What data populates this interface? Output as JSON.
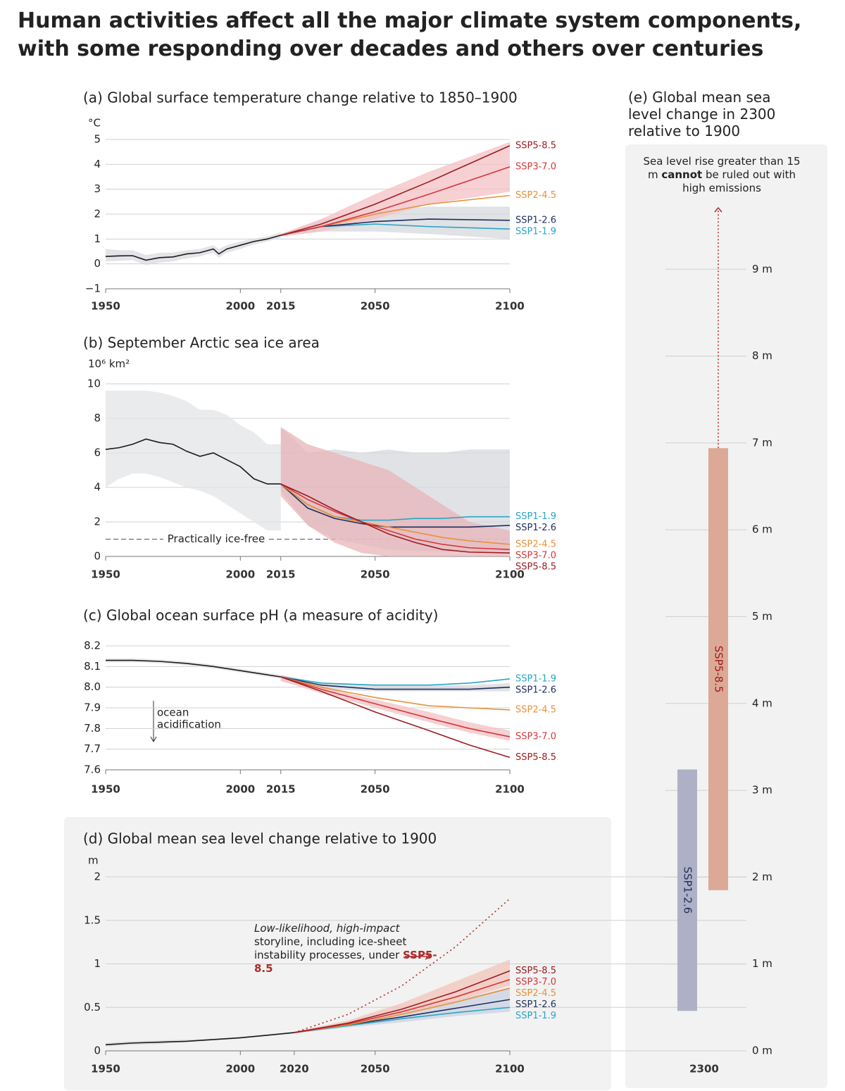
{
  "title": "Human activities affect all the major climate system components, with some responding over decades and others over centuries",
  "chart_data": [
    {
      "type": "line",
      "title": "(a) Global surface temperature change relative to 1850–1900",
      "y_unit": "°C",
      "xlim": [
        1950,
        2100
      ],
      "xticks": [
        1950,
        2000,
        2015,
        2050,
        2100
      ],
      "ylim": [
        -1,
        5
      ],
      "yticks": [
        {
          "value": -1,
          "label": "−1"
        },
        0,
        1,
        2,
        3,
        4,
        5
      ],
      "grid": true,
      "series": [
        {
          "color": "#1a1a1a",
          "band_color": "#d9dbdf",
          "x": [
            1950,
            1955,
            1960,
            1965,
            1970,
            1975,
            1980,
            1985,
            1990,
            1992,
            1995,
            2000,
            2005,
            2010,
            2015
          ],
          "values": [
            0.3,
            0.32,
            0.33,
            0.15,
            0.25,
            0.28,
            0.4,
            0.45,
            0.6,
            0.4,
            0.6,
            0.75,
            0.9,
            1.0,
            1.15
          ],
          "low": [
            0.1,
            0.12,
            0.15,
            -0.05,
            0.05,
            0.1,
            0.22,
            0.3,
            0.45,
            0.25,
            0.45,
            0.6,
            0.78,
            0.9,
            1.05
          ],
          "high": [
            0.6,
            0.55,
            0.55,
            0.35,
            0.45,
            0.45,
            0.55,
            0.6,
            0.75,
            0.6,
            0.75,
            0.9,
            1.02,
            1.1,
            1.28
          ]
        },
        {
          "name": "SSP1-1.9",
          "color": "#2aa5c6",
          "x": [
            2015,
            2030,
            2050,
            2070,
            2100
          ],
          "values": [
            1.15,
            1.5,
            1.6,
            1.5,
            1.4
          ]
        },
        {
          "name": "SSP1-2.6",
          "color": "#1f2e5e",
          "band_color": "#d5d8de",
          "x": [
            2015,
            2030,
            2050,
            2070,
            2100
          ],
          "values": [
            1.15,
            1.5,
            1.7,
            1.8,
            1.75
          ],
          "low": [
            1.1,
            1.3,
            1.3,
            1.2,
            1.0
          ],
          "high": [
            1.2,
            1.8,
            2.1,
            2.3,
            2.3
          ]
        },
        {
          "name": "SSP2-4.5",
          "color": "#e8913a",
          "x": [
            2015,
            2030,
            2050,
            2070,
            2100
          ],
          "values": [
            1.15,
            1.5,
            2.0,
            2.4,
            2.75
          ]
        },
        {
          "name": "SSP3-7.0",
          "color": "#d6363b",
          "band_color": "#f3c0c3",
          "x": [
            2015,
            2030,
            2050,
            2070,
            2100
          ],
          "values": [
            1.15,
            1.5,
            2.1,
            2.8,
            3.9
          ],
          "low": [
            1.1,
            1.3,
            1.8,
            2.4,
            2.9
          ],
          "high": [
            1.2,
            1.8,
            2.8,
            3.7,
            4.9
          ]
        },
        {
          "name": "SSP5-8.5",
          "color": "#9c1c22",
          "x": [
            2015,
            2030,
            2050,
            2070,
            2100
          ],
          "values": [
            1.15,
            1.6,
            2.4,
            3.3,
            4.75
          ]
        }
      ]
    },
    {
      "type": "line",
      "title": "(b) September Arctic sea ice area",
      "y_unit": "10⁶ km²",
      "xlim": [
        1950,
        2100
      ],
      "xticks": [
        1950,
        2000,
        2015,
        2050,
        2100
      ],
      "ylim": [
        0,
        10
      ],
      "yticks": [
        0,
        2,
        4,
        6,
        8,
        10
      ],
      "grid": true,
      "threshold": {
        "value": 1,
        "label": "Practically ice-free"
      },
      "series": [
        {
          "color": "#1a1a1a",
          "band_color": "#e3e4e6",
          "x": [
            1950,
            1955,
            1960,
            1965,
            1970,
            1975,
            1980,
            1985,
            1990,
            1995,
            2000,
            2005,
            2010,
            2015
          ],
          "values": [
            6.2,
            6.3,
            6.5,
            6.8,
            6.6,
            6.5,
            6.1,
            5.8,
            6.0,
            5.6,
            5.2,
            4.5,
            4.2,
            4.2
          ],
          "low": [
            4.0,
            4.5,
            4.8,
            4.8,
            4.6,
            4.3,
            4.0,
            3.8,
            3.5,
            3.0,
            2.5,
            2.0,
            1.5,
            1.5
          ],
          "high": [
            9.6,
            9.6,
            9.6,
            9.6,
            9.5,
            9.3,
            9.0,
            8.5,
            8.5,
            8.2,
            7.6,
            7.2,
            6.5,
            6.5
          ]
        },
        {
          "name": "SSP1-1.9",
          "color": "#2aa5c6",
          "x": [
            2015,
            2025,
            2035,
            2045,
            2055,
            2065,
            2075,
            2085,
            2100
          ],
          "values": [
            4.2,
            3.0,
            2.3,
            2.1,
            2.1,
            2.2,
            2.2,
            2.3,
            2.3
          ]
        },
        {
          "name": "SSP1-2.6",
          "color": "#1f2e5e",
          "band_color": "#d5d8de",
          "x": [
            2015,
            2025,
            2035,
            2045,
            2055,
            2065,
            2075,
            2085,
            2100
          ],
          "values": [
            4.2,
            2.8,
            2.2,
            1.9,
            1.7,
            1.7,
            1.7,
            1.7,
            1.8
          ],
          "low": [
            3.8,
            1.8,
            1.0,
            0.7,
            0.4,
            0.3,
            0.3,
            0.3,
            0.3
          ],
          "high": [
            7.5,
            6.0,
            6.2,
            6.0,
            6.2,
            6.0,
            6.0,
            6.2,
            6.2
          ]
        },
        {
          "name": "SSP2-4.5",
          "color": "#e8913a",
          "x": [
            2015,
            2025,
            2035,
            2045,
            2055,
            2065,
            2075,
            2085,
            2100
          ],
          "values": [
            4.2,
            3.0,
            2.3,
            2.0,
            1.7,
            1.4,
            1.1,
            0.9,
            0.7
          ]
        },
        {
          "name": "SSP3-7.0",
          "color": "#d6363b",
          "x": [
            2015,
            2025,
            2035,
            2045,
            2055,
            2065,
            2075,
            2085,
            2100
          ],
          "values": [
            4.2,
            3.3,
            2.6,
            2.0,
            1.5,
            1.0,
            0.7,
            0.5,
            0.4
          ]
        },
        {
          "name": "SSP5-8.5",
          "color": "#9c1c22",
          "band_color": "#e8b4b8",
          "x": [
            2015,
            2025,
            2035,
            2045,
            2055,
            2065,
            2075,
            2085,
            2100
          ],
          "values": [
            4.2,
            3.5,
            2.7,
            2.0,
            1.3,
            0.8,
            0.4,
            0.25,
            0.2
          ],
          "low": [
            3.5,
            1.8,
            0.8,
            0.2,
            0,
            0,
            0,
            0,
            0
          ],
          "high": [
            7.5,
            6.5,
            6.0,
            5.5,
            5.0,
            4.0,
            3.0,
            2.0,
            1.5
          ]
        }
      ]
    },
    {
      "type": "line",
      "title": "(c) Global ocean surface pH (a measure of acidity)",
      "xlim": [
        1950,
        2100
      ],
      "xticks": [
        1950,
        2000,
        2015,
        2050,
        2100
      ],
      "ylim": [
        7.6,
        8.2
      ],
      "yticks": [
        7.6,
        7.7,
        7.8,
        7.9,
        {
          "value": 8,
          "label": "8.0"
        },
        8.1,
        8.2
      ],
      "grid": true,
      "annotation": [
        "ocean",
        "acidification"
      ],
      "series": [
        {
          "color": "#1a1a1a",
          "band_color": "#e3e4e6",
          "x": [
            1950,
            1960,
            1970,
            1980,
            1990,
            2000,
            2010,
            2015
          ],
          "values": [
            8.13,
            8.13,
            8.125,
            8.115,
            8.1,
            8.08,
            8.06,
            8.05
          ],
          "low": [
            8.12,
            8.12,
            8.115,
            8.105,
            8.09,
            8.07,
            8.05,
            8.04
          ],
          "high": [
            8.14,
            8.14,
            8.135,
            8.125,
            8.11,
            8.09,
            8.07,
            8.06
          ]
        },
        {
          "name": "SSP1-1.9",
          "color": "#2aa5c6",
          "x": [
            2015,
            2030,
            2050,
            2070,
            2085,
            2100
          ],
          "values": [
            8.05,
            8.02,
            8.01,
            8.01,
            8.02,
            8.04
          ]
        },
        {
          "name": "SSP1-2.6",
          "color": "#1f2e5e",
          "band_color": "#d5d8de",
          "x": [
            2015,
            2030,
            2050,
            2070,
            2085,
            2100
          ],
          "values": [
            8.05,
            8.01,
            7.99,
            7.99,
            7.99,
            8.0
          ],
          "low": [
            8.03,
            7.99,
            7.98,
            7.98,
            7.98,
            7.98
          ],
          "high": [
            8.06,
            8.02,
            8.01,
            8.01,
            8.01,
            8.02
          ]
        },
        {
          "name": "SSP2-4.5",
          "color": "#e8913a",
          "x": [
            2015,
            2030,
            2050,
            2070,
            2085,
            2100
          ],
          "values": [
            8.05,
            8.0,
            7.95,
            7.91,
            7.9,
            7.89
          ]
        },
        {
          "name": "SSP3-7.0",
          "color": "#d6363b",
          "band_color": "#f3c0c3",
          "x": [
            2015,
            2030,
            2050,
            2070,
            2085,
            2100
          ],
          "values": [
            8.05,
            7.99,
            7.92,
            7.85,
            7.8,
            7.76
          ],
          "low": [
            8.03,
            7.97,
            7.9,
            7.83,
            7.78,
            7.74
          ],
          "high": [
            8.06,
            8.0,
            7.94,
            7.88,
            7.83,
            7.79
          ]
        },
        {
          "name": "SSP5-8.5",
          "color": "#9c1c22",
          "x": [
            2015,
            2030,
            2050,
            2070,
            2085,
            2100
          ],
          "values": [
            8.05,
            7.98,
            7.88,
            7.79,
            7.72,
            7.66
          ]
        }
      ]
    },
    {
      "type": "line",
      "title": "(d) Global mean sea level change relative to 1900",
      "y_unit": "m",
      "xlim": [
        1950,
        2100
      ],
      "xticks": [
        1950,
        2000,
        2020,
        2050,
        2100
      ],
      "ylim": [
        0,
        2
      ],
      "yticks": [
        0,
        0.5,
        1,
        1.5,
        2
      ],
      "grid": true,
      "annotation": [
        "Low-likelihood, high-impact",
        "storyline, including ice-sheet instability processes, under",
        "SSP5-8.5"
      ],
      "series": [
        {
          "color": "#1a1a1a",
          "band_color": "#d5d8de",
          "x": [
            1950,
            1960,
            1970,
            1980,
            1990,
            2000,
            2010,
            2020
          ],
          "values": [
            0.07,
            0.09,
            0.1,
            0.11,
            0.13,
            0.15,
            0.18,
            0.21
          ],
          "low": [
            0.05,
            0.07,
            0.08,
            0.1,
            0.12,
            0.14,
            0.17,
            0.2
          ],
          "high": [
            0.09,
            0.11,
            0.12,
            0.13,
            0.14,
            0.16,
            0.19,
            0.22
          ]
        },
        {
          "name": "SSP1-1.9",
          "color": "#2aa5c6",
          "x": [
            2020,
            2040,
            2060,
            2080,
            2100
          ],
          "values": [
            0.21,
            0.29,
            0.37,
            0.44,
            0.5
          ]
        },
        {
          "name": "SSP1-2.6",
          "color": "#1f2e5e",
          "band_color": "#c9d2e0",
          "x": [
            2020,
            2040,
            2060,
            2080,
            2100
          ],
          "values": [
            0.21,
            0.3,
            0.39,
            0.49,
            0.59
          ],
          "low": [
            0.2,
            0.27,
            0.33,
            0.4,
            0.45
          ],
          "high": [
            0.22,
            0.33,
            0.45,
            0.58,
            0.73
          ]
        },
        {
          "name": "SSP2-4.5",
          "color": "#e8913a",
          "x": [
            2020,
            2040,
            2060,
            2080,
            2100
          ],
          "values": [
            0.21,
            0.3,
            0.42,
            0.56,
            0.72
          ]
        },
        {
          "name": "SSP3-7.0",
          "color": "#d6363b",
          "x": [
            2020,
            2040,
            2060,
            2080,
            2100
          ],
          "values": [
            0.21,
            0.31,
            0.45,
            0.62,
            0.82
          ]
        },
        {
          "name": "SSP5-8.5",
          "color": "#9c1c22",
          "band_color": "#f1c3b8",
          "x": [
            2020,
            2040,
            2060,
            2080,
            2100
          ],
          "values": [
            0.21,
            0.32,
            0.48,
            0.68,
            0.92
          ],
          "low": [
            0.2,
            0.29,
            0.41,
            0.57,
            0.75
          ],
          "high": [
            0.22,
            0.35,
            0.55,
            0.8,
            1.05
          ]
        },
        {
          "color": "#b02a2a",
          "dashed": true,
          "x": [
            2020,
            2040,
            2060,
            2080,
            2100
          ],
          "values": [
            0.21,
            0.42,
            0.75,
            1.2,
            1.75
          ]
        }
      ]
    },
    {
      "type": "range_bar",
      "title": "(e) Global mean sea level change in 2300 relative to 1900",
      "note": [
        "Sea level rise greater than 15 m",
        "cannot",
        "be ruled out with high emissions"
      ],
      "categories": [
        "2300"
      ],
      "ylim": [
        0,
        10
      ],
      "yticks": [
        {
          "value": 0,
          "label": "0 m"
        },
        {
          "value": 1,
          "label": "1 m"
        },
        {
          "value": 2,
          "label": "2 m"
        },
        {
          "value": 3,
          "label": "3 m"
        },
        {
          "value": 4,
          "label": "4 m"
        },
        {
          "value": 5,
          "label": "5 m"
        },
        {
          "value": 6,
          "label": "6 m"
        },
        {
          "value": 7,
          "label": "7 m"
        },
        {
          "value": 8,
          "label": "8 m"
        },
        {
          "value": 9,
          "label": "9 m"
        }
      ],
      "series": [
        {
          "name": "SSP1-2.6",
          "color": "#aeb1c6",
          "label_color": "#1f2e5e",
          "low": 0.46,
          "high": 3.24
        },
        {
          "name": "SSP5-8.5",
          "color": "#dca996",
          "label_color": "#9c1c22",
          "low": 1.85,
          "high": 6.94
        }
      ]
    }
  ]
}
